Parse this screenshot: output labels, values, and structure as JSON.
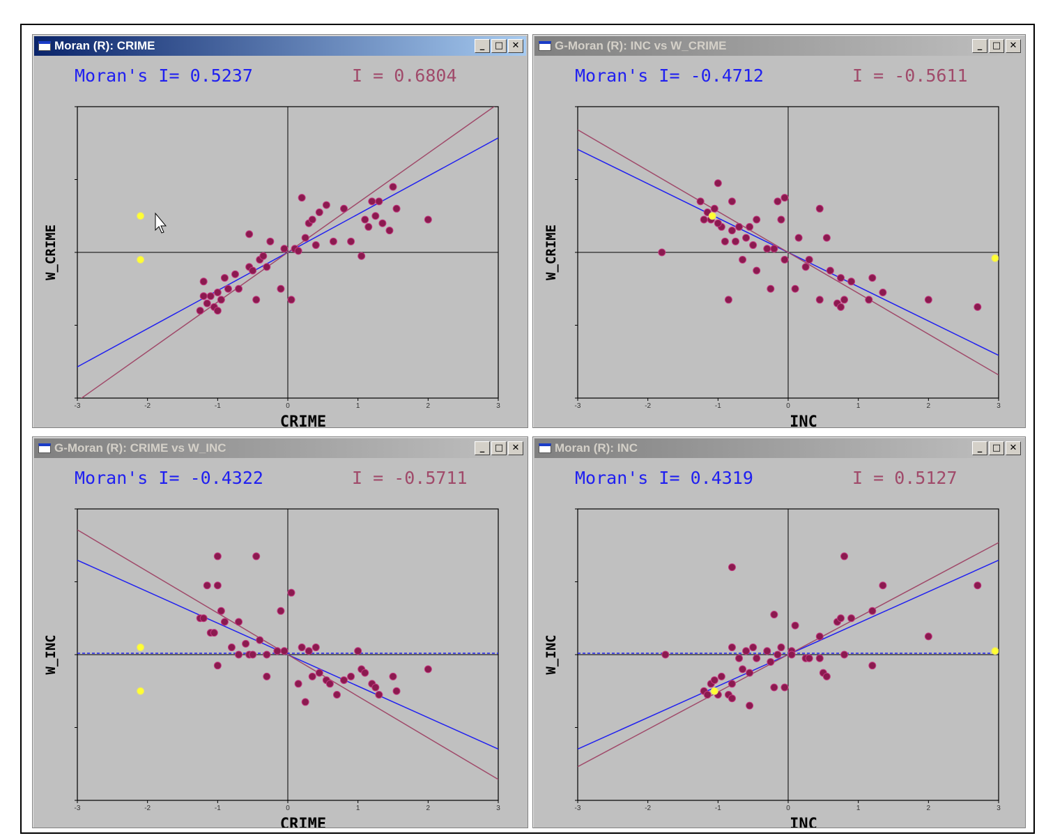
{
  "colors": {
    "desktop": "#ffffff",
    "window": "#c0c0c0",
    "title_active": "#0a246a",
    "title_inactive": "#808080",
    "stat_blue": "#2020f0",
    "stat_red": "#a04a6a",
    "point": "#8b1a4f",
    "point_selected": "#ffff33",
    "line_blue": "#2020f0",
    "line_red": "#a04a6a"
  },
  "window_controls": {
    "minimize_icon": "minimize-icon",
    "maximize_icon": "maximize-icon",
    "close_icon": "close-icon"
  },
  "windows": [
    {
      "title": "Moran (R): CRIME",
      "active": true,
      "stat_left": "Moran's I= 0.5237",
      "stat_right": "I = 0.6804",
      "chart_data": {
        "type": "scatter",
        "xlabel": "CRIME",
        "ylabel": "W_CRIME",
        "xlim": [
          -3,
          3
        ],
        "ylim": [
          -2,
          2
        ],
        "ticks": [
          "-3",
          "-2",
          "-1",
          "0",
          "1",
          "2",
          "3"
        ],
        "dashed_reference": false,
        "regression_lines": [
          {
            "color": "line_blue",
            "slope": 0.5237,
            "intercept": 0
          },
          {
            "color": "line_red",
            "slope": 0.6804,
            "intercept": 0
          }
        ],
        "points": [
          [
            -1.2,
            -0.4
          ],
          [
            -1.15,
            -0.7
          ],
          [
            -1.1,
            -0.6
          ],
          [
            -1.05,
            -0.75
          ],
          [
            -1.0,
            -0.8
          ],
          [
            -0.95,
            -0.65
          ],
          [
            -0.9,
            -0.35
          ],
          [
            -1.0,
            -0.55
          ],
          [
            -1.2,
            -0.6
          ],
          [
            -0.75,
            -0.3
          ],
          [
            -0.7,
            -0.5
          ],
          [
            -0.55,
            -0.2
          ],
          [
            -0.5,
            -0.25
          ],
          [
            -0.45,
            -0.65
          ],
          [
            -0.4,
            -0.1
          ],
          [
            -0.3,
            -0.2
          ],
          [
            -0.25,
            0.15
          ],
          [
            -0.1,
            -0.5
          ],
          [
            -0.05,
            0.05
          ],
          [
            0.05,
            -0.65
          ],
          [
            0.1,
            0.05
          ],
          [
            0.2,
            0.75
          ],
          [
            0.25,
            0.2
          ],
          [
            0.3,
            0.4
          ],
          [
            0.35,
            0.45
          ],
          [
            0.4,
            0.1
          ],
          [
            0.45,
            0.55
          ],
          [
            0.55,
            0.65
          ],
          [
            0.65,
            0.15
          ],
          [
            0.8,
            0.6
          ],
          [
            0.9,
            0.15
          ],
          [
            1.05,
            -0.05
          ],
          [
            1.1,
            0.45
          ],
          [
            1.15,
            0.35
          ],
          [
            1.2,
            0.7
          ],
          [
            1.25,
            0.5
          ],
          [
            1.3,
            0.7
          ],
          [
            1.35,
            0.4
          ],
          [
            1.45,
            0.3
          ],
          [
            1.5,
            0.9
          ],
          [
            1.55,
            0.6
          ],
          [
            2.0,
            0.45
          ],
          [
            -0.55,
            0.25
          ],
          [
            -0.35,
            -0.05
          ],
          [
            -0.85,
            -0.5
          ],
          [
            -1.25,
            -0.8
          ],
          [
            0.15,
            0.02
          ]
        ],
        "selected_points": [
          [
            -2.1,
            0.5
          ],
          [
            -2.1,
            -0.1
          ]
        ]
      }
    },
    {
      "title": "G-Moran (R): INC vs W_CRIME",
      "active": false,
      "stat_left": "Moran's I= -0.4712",
      "stat_right": "I = -0.5611",
      "chart_data": {
        "type": "scatter",
        "xlabel": "INC",
        "ylabel": "W_CRIME",
        "xlim": [
          -3,
          3
        ],
        "ylim": [
          -2,
          2
        ],
        "ticks": [
          "-3",
          "-2",
          "-1",
          "0",
          "1",
          "2",
          "3"
        ],
        "dashed_reference": false,
        "regression_lines": [
          {
            "color": "line_blue",
            "slope": -0.4712,
            "intercept": 0
          },
          {
            "color": "line_red",
            "slope": -0.5611,
            "intercept": 0
          }
        ],
        "points": [
          [
            -1.8,
            0.0
          ],
          [
            -1.25,
            0.7
          ],
          [
            -1.2,
            0.45
          ],
          [
            -1.15,
            0.55
          ],
          [
            -1.1,
            0.45
          ],
          [
            -1.05,
            0.6
          ],
          [
            -1.0,
            0.95
          ],
          [
            -0.95,
            0.35
          ],
          [
            -0.9,
            0.15
          ],
          [
            -0.85,
            -0.65
          ],
          [
            -0.8,
            0.3
          ],
          [
            -0.8,
            0.7
          ],
          [
            -0.75,
            0.15
          ],
          [
            -0.7,
            0.35
          ],
          [
            -0.65,
            -0.1
          ],
          [
            -0.6,
            0.2
          ],
          [
            -0.55,
            0.35
          ],
          [
            -0.5,
            0.1
          ],
          [
            -0.45,
            0.45
          ],
          [
            -0.45,
            -0.25
          ],
          [
            -0.3,
            0.05
          ],
          [
            -0.2,
            0.05
          ],
          [
            -0.15,
            0.7
          ],
          [
            -0.1,
            0.45
          ],
          [
            -0.05,
            0.75
          ],
          [
            -0.05,
            -0.1
          ],
          [
            0.1,
            -0.5
          ],
          [
            0.15,
            0.2
          ],
          [
            0.25,
            -0.2
          ],
          [
            0.3,
            -0.1
          ],
          [
            0.45,
            0.6
          ],
          [
            0.45,
            -0.65
          ],
          [
            0.55,
            0.2
          ],
          [
            0.6,
            -0.25
          ],
          [
            0.7,
            -0.7
          ],
          [
            0.75,
            -0.75
          ],
          [
            0.8,
            -0.65
          ],
          [
            0.75,
            -0.35
          ],
          [
            0.9,
            -0.4
          ],
          [
            1.2,
            -0.35
          ],
          [
            1.15,
            -0.65
          ],
          [
            1.35,
            -0.55
          ],
          [
            2.0,
            -0.65
          ],
          [
            2.7,
            -0.75
          ],
          [
            -0.25,
            -0.5
          ],
          [
            -1.0,
            0.4
          ]
        ],
        "selected_points": [
          [
            2.95,
            -0.08
          ],
          [
            -1.08,
            0.5
          ]
        ]
      }
    },
    {
      "title": "G-Moran (R): CRIME vs W_INC",
      "active": false,
      "stat_left": "Moran's I= -0.4322",
      "stat_right": "I = -0.5711",
      "chart_data": {
        "type": "scatter",
        "xlabel": "CRIME",
        "ylabel": "W_INC",
        "xlim": [
          -3,
          3
        ],
        "ylim": [
          -2,
          2
        ],
        "ticks": [
          "-3",
          "-2",
          "-1",
          "0",
          "1",
          "2",
          "3"
        ],
        "dashed_reference": true,
        "regression_lines": [
          {
            "color": "line_blue",
            "slope": -0.4322,
            "intercept": 0
          },
          {
            "color": "line_red",
            "slope": -0.5711,
            "intercept": 0
          }
        ],
        "points": [
          [
            -1.25,
            0.5
          ],
          [
            -1.2,
            0.5
          ],
          [
            -1.15,
            0.95
          ],
          [
            -1.1,
            0.3
          ],
          [
            -1.05,
            0.3
          ],
          [
            -1.0,
            1.35
          ],
          [
            -1.0,
            0.95
          ],
          [
            -0.95,
            0.6
          ],
          [
            -0.9,
            0.45
          ],
          [
            -1.0,
            -0.15
          ],
          [
            -0.8,
            0.1
          ],
          [
            -0.7,
            0.45
          ],
          [
            -0.6,
            0.15
          ],
          [
            -0.55,
            0.0
          ],
          [
            -0.5,
            0.0
          ],
          [
            -0.45,
            1.35
          ],
          [
            -0.4,
            0.2
          ],
          [
            -0.3,
            0.0
          ],
          [
            -0.3,
            -0.3
          ],
          [
            -0.15,
            0.05
          ],
          [
            -0.1,
            0.6
          ],
          [
            -0.05,
            0.05
          ],
          [
            0.05,
            0.85
          ],
          [
            0.15,
            -0.4
          ],
          [
            0.2,
            0.1
          ],
          [
            0.25,
            -0.65
          ],
          [
            0.3,
            0.05
          ],
          [
            0.35,
            -0.3
          ],
          [
            0.4,
            0.1
          ],
          [
            0.45,
            -0.25
          ],
          [
            0.55,
            -0.35
          ],
          [
            0.7,
            -0.55
          ],
          [
            0.8,
            -0.35
          ],
          [
            0.9,
            -0.3
          ],
          [
            1.0,
            0.05
          ],
          [
            1.05,
            -0.2
          ],
          [
            1.1,
            -0.25
          ],
          [
            1.2,
            -0.4
          ],
          [
            1.25,
            -0.45
          ],
          [
            1.3,
            -0.55
          ],
          [
            1.5,
            -0.3
          ],
          [
            1.55,
            -0.5
          ],
          [
            2.0,
            -0.2
          ],
          [
            -0.7,
            0.0
          ],
          [
            0.6,
            -0.4
          ]
        ],
        "selected_points": [
          [
            -2.1,
            0.1
          ],
          [
            -2.1,
            -0.5
          ]
        ]
      }
    },
    {
      "title": "Moran (R): INC",
      "active": false,
      "stat_left": "Moran's I= 0.4319",
      "stat_right": "I = 0.5127",
      "chart_data": {
        "type": "scatter",
        "xlabel": "INC",
        "ylabel": "W_INC",
        "xlim": [
          -3,
          3
        ],
        "ylim": [
          -2,
          2
        ],
        "ticks": [
          "-3",
          "-2",
          "-1",
          "0",
          "1",
          "2",
          "3"
        ],
        "dashed_reference": true,
        "regression_lines": [
          {
            "color": "line_blue",
            "slope": 0.4319,
            "intercept": 0
          },
          {
            "color": "line_red",
            "slope": 0.5127,
            "intercept": 0
          }
        ],
        "points": [
          [
            -1.75,
            0.0
          ],
          [
            -1.2,
            -0.5
          ],
          [
            -1.15,
            -0.55
          ],
          [
            -1.1,
            -0.4
          ],
          [
            -1.05,
            -0.35
          ],
          [
            -1.0,
            -0.55
          ],
          [
            -0.95,
            -0.3
          ],
          [
            -0.85,
            -0.55
          ],
          [
            -0.8,
            1.2
          ],
          [
            -0.8,
            -0.4
          ],
          [
            -0.8,
            -0.6
          ],
          [
            -0.8,
            0.1
          ],
          [
            -0.7,
            -0.05
          ],
          [
            -0.65,
            -0.2
          ],
          [
            -0.6,
            0.05
          ],
          [
            -0.55,
            -0.25
          ],
          [
            -0.55,
            -0.7
          ],
          [
            -0.5,
            0.1
          ],
          [
            -0.45,
            -0.05
          ],
          [
            -0.3,
            0.05
          ],
          [
            -0.25,
            -0.1
          ],
          [
            -0.2,
            0.55
          ],
          [
            -0.2,
            -0.45
          ],
          [
            -0.15,
            0.0
          ],
          [
            -0.05,
            -0.45
          ],
          [
            0.05,
            0.05
          ],
          [
            0.1,
            0.4
          ],
          [
            0.25,
            -0.05
          ],
          [
            0.3,
            -0.05
          ],
          [
            0.45,
            0.25
          ],
          [
            0.45,
            -0.05
          ],
          [
            0.5,
            -0.25
          ],
          [
            0.55,
            -0.3
          ],
          [
            0.7,
            0.45
          ],
          [
            0.75,
            0.5
          ],
          [
            0.8,
            0.0
          ],
          [
            0.8,
            1.35
          ],
          [
            0.9,
            0.5
          ],
          [
            1.2,
            0.6
          ],
          [
            1.2,
            -0.15
          ],
          [
            1.35,
            0.95
          ],
          [
            2.0,
            0.25
          ],
          [
            2.7,
            0.95
          ],
          [
            0.05,
            0.0
          ],
          [
            -0.1,
            0.1
          ]
        ],
        "selected_points": [
          [
            2.95,
            0.05
          ],
          [
            -1.05,
            -0.5
          ]
        ]
      }
    }
  ]
}
